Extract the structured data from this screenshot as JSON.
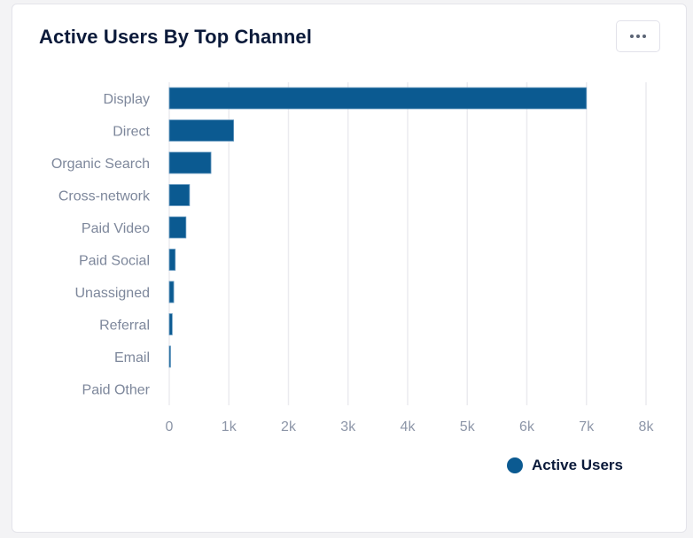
{
  "card": {
    "title": "Active Users By Top Channel",
    "menu_button_icon": "more-horizontal-icon"
  },
  "colors": {
    "bar": "#0b5a91",
    "bar_edge": "#6a9cc2",
    "grid": "#ebebef",
    "title": "#0b1a3a",
    "tick_text": "#8d96a8"
  },
  "chart_data": {
    "type": "bar",
    "orientation": "horizontal",
    "title": "Active Users By Top Channel",
    "xlabel": "",
    "ylabel": "",
    "categories": [
      "Display",
      "Direct",
      "Organic Search",
      "Cross-network",
      "Paid Video",
      "Paid Social",
      "Unassigned",
      "Referral",
      "Email",
      "Paid Other"
    ],
    "series": [
      {
        "name": "Active Users",
        "values": [
          7000,
          1080,
          700,
          340,
          280,
          100,
          75,
          50,
          20,
          0
        ]
      }
    ],
    "xlim": [
      0,
      8000
    ],
    "x_ticks": [
      0,
      1000,
      2000,
      3000,
      4000,
      5000,
      6000,
      7000,
      8000
    ],
    "x_tick_labels": [
      "0",
      "1k",
      "2k",
      "3k",
      "4k",
      "5k",
      "6k",
      "7k",
      "8k"
    ],
    "grid": true,
    "legend": {
      "position": "bottom-right",
      "entries": [
        "Active Users"
      ]
    }
  }
}
